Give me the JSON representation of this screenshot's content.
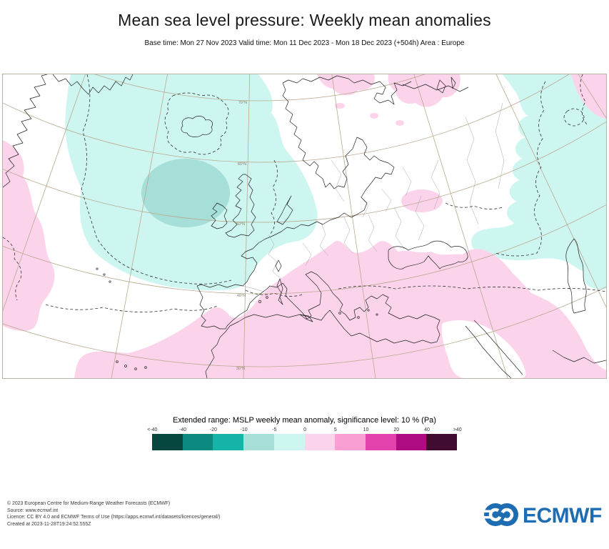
{
  "header": {
    "title": "Mean sea level pressure: Weekly mean anomalies",
    "subtitle": "Base time: Mon 27 Nov 2023 Valid time: Mon 11 Dec 2023 - Mon 18 Dec 2023 (+504h) Area : Europe"
  },
  "map": {
    "area": "Europe",
    "latitude_labels": [
      "70°N",
      "60°N",
      "50°N",
      "40°N",
      "30°N"
    ],
    "colors": {
      "anomaly_neg_medium": "#a6ded8",
      "anomaly_neg_light": "#cdf6f1",
      "anomaly_pos_light": "#fbd4ec",
      "coastline": "#222222",
      "country_border": "#a6a6a6",
      "graticule": "#b9a88e",
      "graticule_label": "#8a7a60",
      "contour": "#333333"
    }
  },
  "legend": {
    "title": "Extended range: MSLP weekly mean anomaly, significance level: 10 % (Pa)",
    "ticks": [
      "<-40",
      "-40",
      "-20",
      "-10",
      "-5",
      "0",
      "5",
      "10",
      "20",
      "40",
      ">40"
    ],
    "colors": [
      "#07473f",
      "#0c8a80",
      "#16b3a8",
      "#a6ded8",
      "#cdf6f1",
      "#fbd4ec",
      "#f99fd4",
      "#e243ad",
      "#b00c81",
      "#420b30"
    ]
  },
  "footer": {
    "lines": [
      "© 2023 European Centre for Medium-Range Weather Forecasts (ECMWF)",
      "Source: www.ecmwf.int",
      "Licence: CC BY 4.0 and ECMWF Terms of Use (https://apps.ecmwf.int/datasets/licences/general/)",
      "Created at 2023-11-28T19:24:52.555Z"
    ],
    "logo_text": "ECMWF",
    "logo_color": "#1e6cb2"
  }
}
